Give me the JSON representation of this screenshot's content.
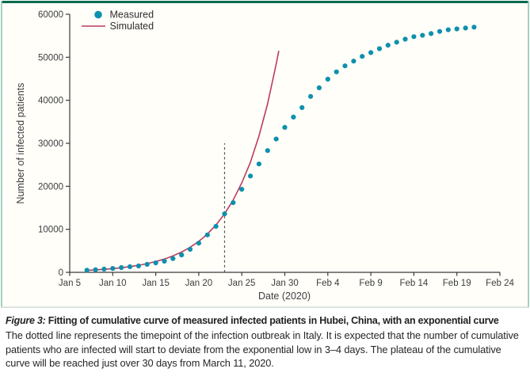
{
  "colors": {
    "measured_dot": "#0e90ae",
    "simulated_line": "#bd3a5c",
    "frame_top": "#056a4c",
    "frame_side": "#9dc9ba",
    "frame_bottom": "#c9d6d0",
    "plot_background": "#fffef9",
    "axis": "#3a3a3a",
    "dashed_line": "#49565c"
  },
  "legend": [
    {
      "label": "Measured",
      "glyph": "dot",
      "color": "#0e90ae"
    },
    {
      "label": "Simulated",
      "glyph": "line",
      "color": "#bd3a5c"
    }
  ],
  "chart_data": {
    "type": "scatter_line",
    "title": "",
    "xlabel": "Date (2020)",
    "ylabel": "Number of infected patients",
    "ylim": [
      0,
      60000
    ],
    "xlim_days_from_jan5": [
      0,
      50
    ],
    "grid": false,
    "legend_position": "top-left-inside",
    "y_ticks": [
      0,
      10000,
      20000,
      30000,
      40000,
      50000,
      60000
    ],
    "x_ticks": [
      {
        "label": "Jan 5",
        "day": 0
      },
      {
        "label": "Jan 10",
        "day": 5
      },
      {
        "label": "Jan 15",
        "day": 10
      },
      {
        "label": "Jan 20",
        "day": 15
      },
      {
        "label": "Jan 25",
        "day": 20
      },
      {
        "label": "Jan 30",
        "day": 25
      },
      {
        "label": "Feb 4",
        "day": 30
      },
      {
        "label": "Feb 9",
        "day": 35
      },
      {
        "label": "Feb 14",
        "day": 40
      },
      {
        "label": "Feb 19",
        "day": 45
      },
      {
        "label": "Feb 24",
        "day": 50
      }
    ],
    "series": [
      {
        "name": "Measured",
        "type": "scatter",
        "color": "#0e90ae",
        "points": [
          {
            "date": "Jan 7",
            "day": 2,
            "value": 500
          },
          {
            "date": "Jan 8",
            "day": 3,
            "value": 600
          },
          {
            "date": "Jan 9",
            "day": 4,
            "value": 750
          },
          {
            "date": "Jan 10",
            "day": 5,
            "value": 900
          },
          {
            "date": "Jan 11",
            "day": 6,
            "value": 1100
          },
          {
            "date": "Jan 12",
            "day": 7,
            "value": 1300
          },
          {
            "date": "Jan 13",
            "day": 8,
            "value": 1500
          },
          {
            "date": "Jan 14",
            "day": 9,
            "value": 1850
          },
          {
            "date": "Jan 15",
            "day": 10,
            "value": 2200
          },
          {
            "date": "Jan 16",
            "day": 11,
            "value": 2600
          },
          {
            "date": "Jan 17",
            "day": 12,
            "value": 3200
          },
          {
            "date": "Jan 18",
            "day": 13,
            "value": 4050
          },
          {
            "date": "Jan 19",
            "day": 14,
            "value": 5350
          },
          {
            "date": "Jan 20",
            "day": 15,
            "value": 6800
          },
          {
            "date": "Jan 21",
            "day": 16,
            "value": 8700
          },
          {
            "date": "Jan 22",
            "day": 17,
            "value": 10700
          },
          {
            "date": "Jan 23",
            "day": 18,
            "value": 13600
          },
          {
            "date": "Jan 24",
            "day": 19,
            "value": 16200
          },
          {
            "date": "Jan 25",
            "day": 20,
            "value": 19300
          },
          {
            "date": "Jan 26",
            "day": 21,
            "value": 22400
          },
          {
            "date": "Jan 27",
            "day": 22,
            "value": 25200
          },
          {
            "date": "Jan 28",
            "day": 23,
            "value": 28300
          },
          {
            "date": "Jan 29",
            "day": 24,
            "value": 31000
          },
          {
            "date": "Jan 30",
            "day": 25,
            "value": 33700
          },
          {
            "date": "Jan 31",
            "day": 26,
            "value": 36100
          },
          {
            "date": "Feb 1",
            "day": 27,
            "value": 38300
          },
          {
            "date": "Feb 2",
            "day": 28,
            "value": 40900
          },
          {
            "date": "Feb 3",
            "day": 29,
            "value": 42900
          },
          {
            "date": "Feb 4",
            "day": 30,
            "value": 44900
          },
          {
            "date": "Feb 5",
            "day": 31,
            "value": 46600
          },
          {
            "date": "Feb 6",
            "day": 32,
            "value": 48000
          },
          {
            "date": "Feb 7",
            "day": 33,
            "value": 49100
          },
          {
            "date": "Feb 8",
            "day": 34,
            "value": 50200
          },
          {
            "date": "Feb 9",
            "day": 35,
            "value": 51100
          },
          {
            "date": "Feb 10",
            "day": 36,
            "value": 52000
          },
          {
            "date": "Feb 11",
            "day": 37,
            "value": 52800
          },
          {
            "date": "Feb 12",
            "day": 38,
            "value": 53500
          },
          {
            "date": "Feb 13",
            "day": 39,
            "value": 54200
          },
          {
            "date": "Feb 14",
            "day": 40,
            "value": 54800
          },
          {
            "date": "Feb 15",
            "day": 41,
            "value": 55100
          },
          {
            "date": "Feb 16",
            "day": 42,
            "value": 55500
          },
          {
            "date": "Feb 17",
            "day": 43,
            "value": 56000
          },
          {
            "date": "Feb 18",
            "day": 44,
            "value": 56400
          },
          {
            "date": "Feb 19",
            "day": 45,
            "value": 56600
          },
          {
            "date": "Feb 20",
            "day": 46,
            "value": 56800
          },
          {
            "date": "Feb 21",
            "day": 47,
            "value": 57000
          }
        ]
      },
      {
        "name": "Simulated",
        "type": "line",
        "color": "#bd3a5c",
        "points": [
          [
            2,
            460
          ],
          [
            3,
            570
          ],
          [
            4,
            700
          ],
          [
            5,
            870
          ],
          [
            6,
            1070
          ],
          [
            7,
            1330
          ],
          [
            8,
            1640
          ],
          [
            9,
            2020
          ],
          [
            10,
            2500
          ],
          [
            11,
            3090
          ],
          [
            12,
            3820
          ],
          [
            13,
            4720
          ],
          [
            14,
            5830
          ],
          [
            15,
            7200
          ],
          [
            16,
            8900
          ],
          [
            17,
            11000
          ],
          [
            18,
            13600
          ],
          [
            19,
            16800
          ],
          [
            20,
            20800
          ],
          [
            21,
            25600
          ],
          [
            22,
            31700
          ],
          [
            23,
            39200
          ],
          [
            24,
            48400
          ],
          [
            24.3,
            51500
          ]
        ]
      }
    ],
    "annotations": {
      "outbreak_timepoint": {
        "meaning": "timepoint of the infection outbreak in Italy",
        "date": "Jan 23",
        "day": 18,
        "y_from": 0,
        "y_to": 30000,
        "style": "dashed-vertical"
      }
    }
  },
  "caption": {
    "figure_label": "Figure 3:",
    "title": "Fitting of cumulative curve of measured infected patients in Hubei, China, with an exponential curve",
    "body": "The dotted line represents the timepoint of the infection outbreak in Italy. It is expected that the number of cumulative patients who are infected will start to deviate from the exponential low in 3–4 days. The plateau of the cumulative curve will be reached just over 30 days from March 11, 2020."
  }
}
